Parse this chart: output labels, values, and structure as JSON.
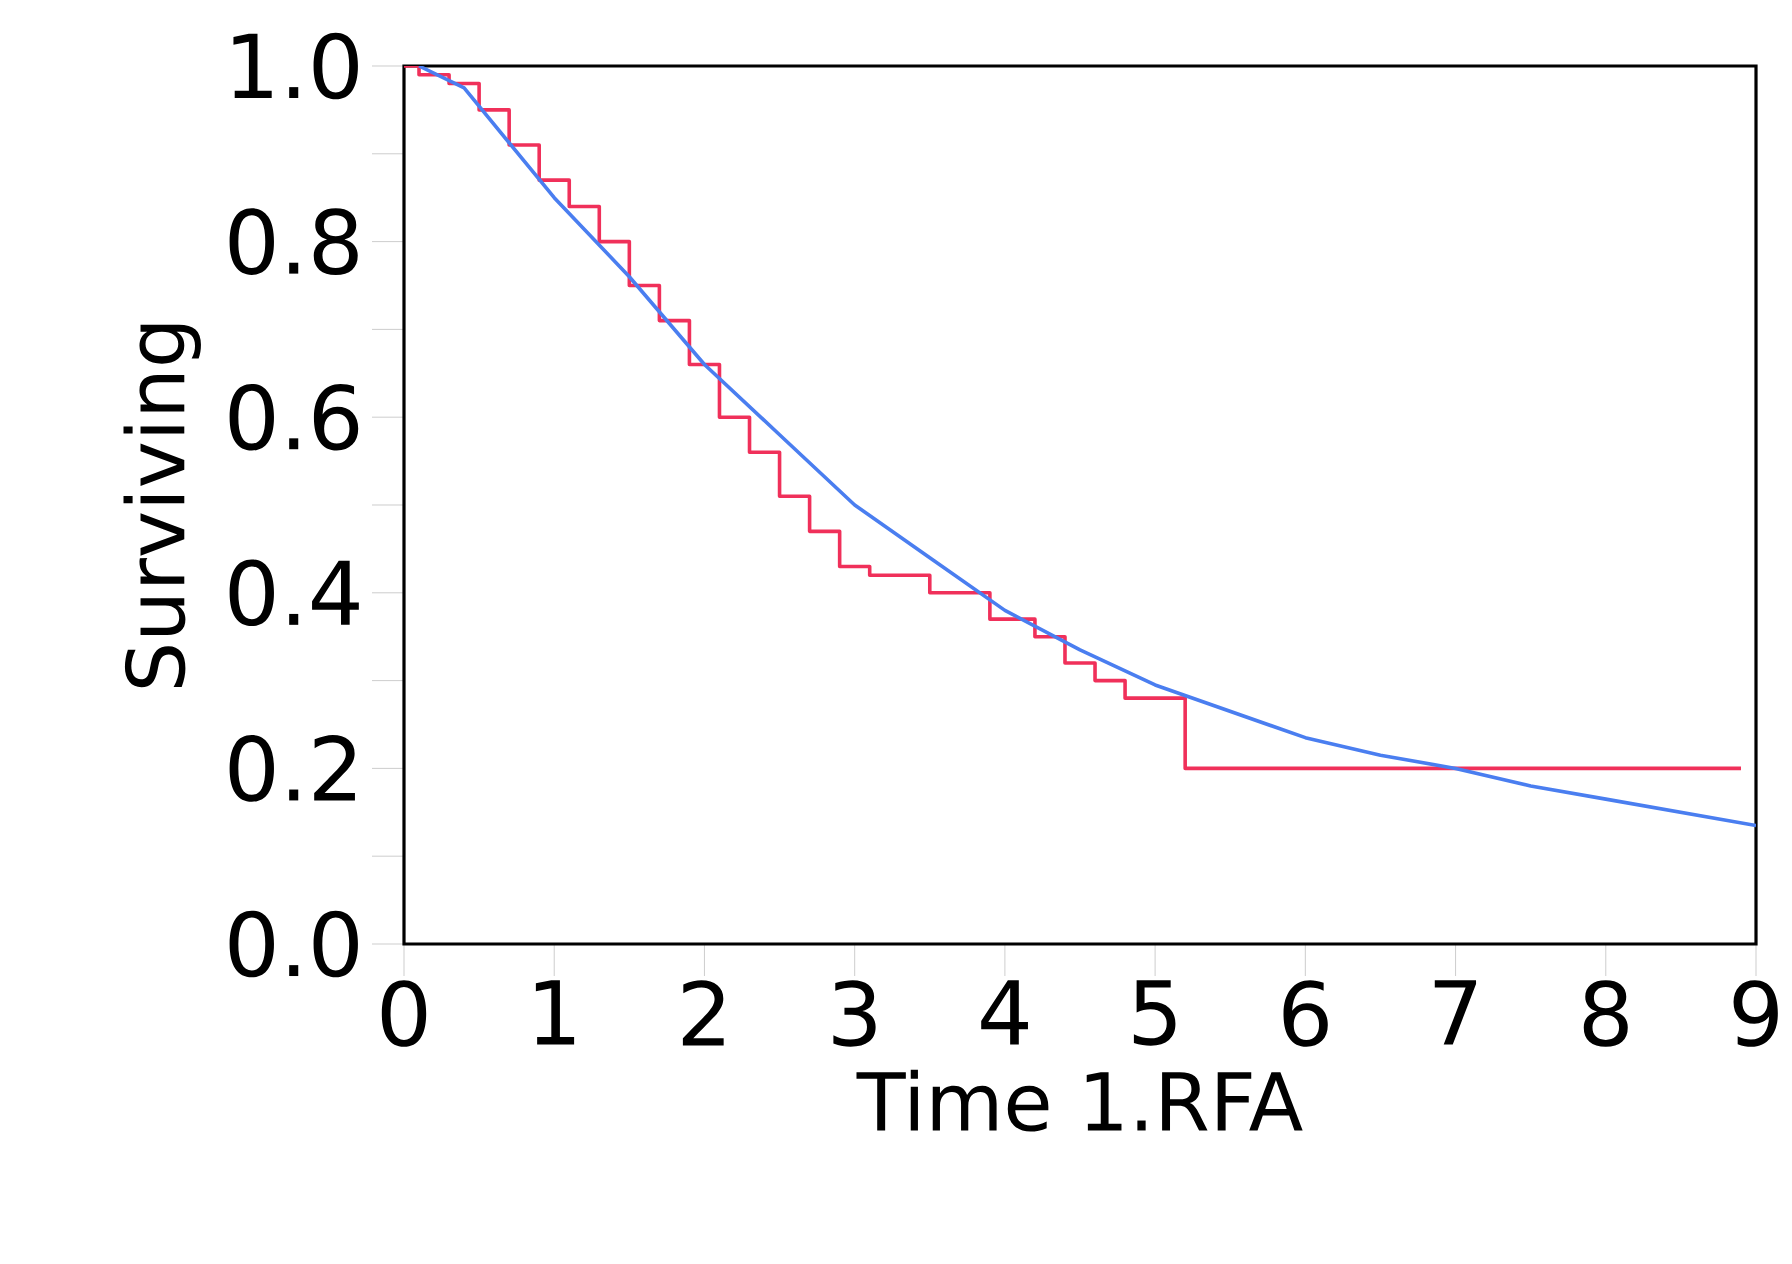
{
  "chart_data": {
    "type": "line",
    "xlabel": "Time 1.RFA",
    "ylabel": "Surviving",
    "xlim": [
      0,
      9
    ],
    "ylim": [
      0,
      1
    ],
    "xticks": [
      0,
      1,
      2,
      3,
      4,
      5,
      6,
      7,
      8,
      9
    ],
    "yticks": [
      {
        "value": 0,
        "label": "0.0"
      },
      {
        "value": 0.1,
        "label": null
      },
      {
        "value": 0.2,
        "label": "0.2"
      },
      {
        "value": 0.3,
        "label": null
      },
      {
        "value": 0.4,
        "label": "0.4"
      },
      {
        "value": 0.5,
        "label": null
      },
      {
        "value": 0.6,
        "label": "0.6"
      },
      {
        "value": 0.7,
        "label": null
      },
      {
        "value": 0.8,
        "label": "0.8"
      },
      {
        "value": 0.9,
        "label": null
      },
      {
        "value": 1.0,
        "label": "1.0"
      }
    ],
    "grid": false,
    "marker": "none",
    "line_style": "solid",
    "series": [
      {
        "type": "step",
        "color": "#f0305a",
        "x": [
          0,
          0.1,
          0.3,
          0.5,
          0.7,
          0.9,
          1.1,
          1.3,
          1.5,
          1.7,
          1.9,
          2.1,
          2.3,
          2.5,
          2.7,
          2.9,
          3.1,
          3.5,
          3.9,
          4.2,
          4.4,
          4.6,
          4.8,
          5.15,
          5.2,
          8.9
        ],
        "values": [
          1.0,
          0.99,
          0.98,
          0.95,
          0.91,
          0.87,
          0.84,
          0.8,
          0.75,
          0.71,
          0.66,
          0.6,
          0.56,
          0.51,
          0.47,
          0.43,
          0.42,
          0.4,
          0.37,
          0.35,
          0.32,
          0.3,
          0.28,
          0.28,
          0.2,
          0.2
        ]
      },
      {
        "color": "#4a7ef0",
        "x": [
          0.1,
          0.4,
          1,
          1.5,
          2,
          2.5,
          3,
          3.5,
          4,
          4.5,
          5,
          5.5,
          6,
          6.5,
          7,
          7.5,
          8,
          8.5,
          9
        ],
        "values": [
          1.0,
          0.975,
          0.85,
          0.76,
          0.66,
          0.58,
          0.5,
          0.44,
          0.38,
          0.335,
          0.295,
          0.265,
          0.235,
          0.215,
          0.2,
          0.18,
          0.165,
          0.15,
          0.135
        ]
      }
    ]
  }
}
